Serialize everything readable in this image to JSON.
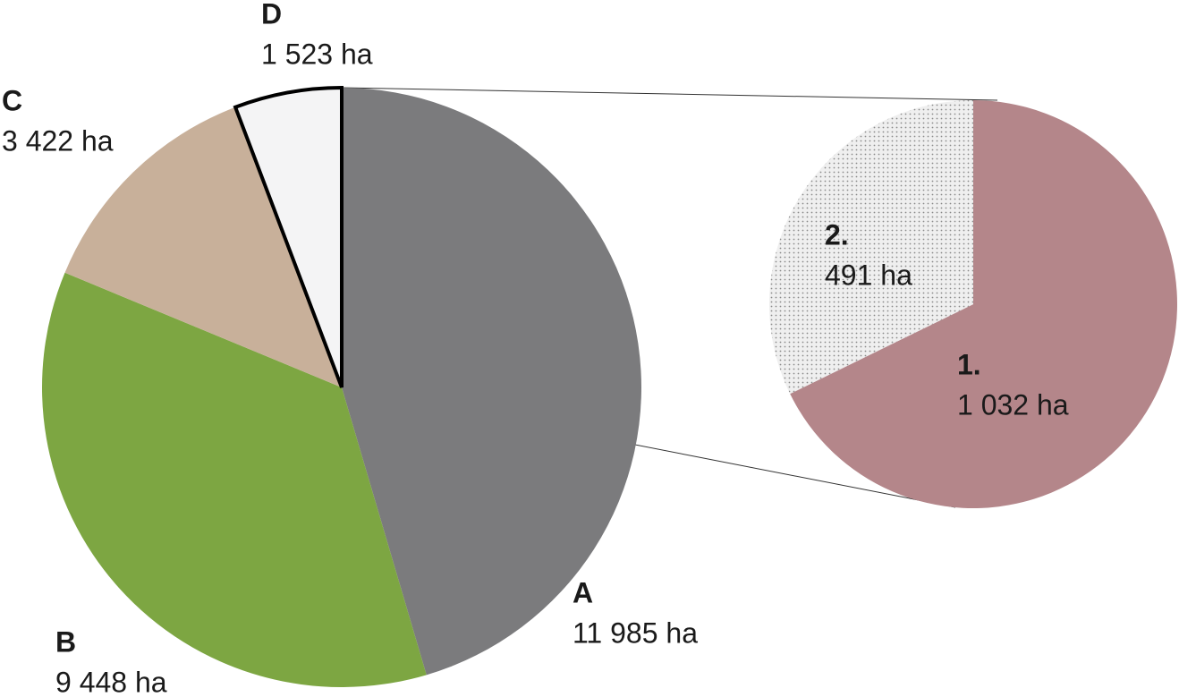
{
  "chart_data": [
    {
      "type": "pie",
      "categories": [
        "A",
        "B",
        "C",
        "D"
      ],
      "values": [
        11985,
        9448,
        3422,
        1523
      ],
      "value_labels": [
        "11 985 ha",
        "9 448 ha",
        "3 422 ha",
        "1 523 ha"
      ],
      "colors": [
        "#7b7b7d",
        "#7da642",
        "#c8b09a",
        "#f4f4f5"
      ]
    },
    {
      "type": "pie",
      "categories": [
        "1.",
        "2."
      ],
      "values": [
        1032,
        491
      ],
      "value_labels": [
        "1 032 ha",
        "491 ha"
      ],
      "colors": [
        "#b4868a",
        "#efefef"
      ]
    }
  ]
}
